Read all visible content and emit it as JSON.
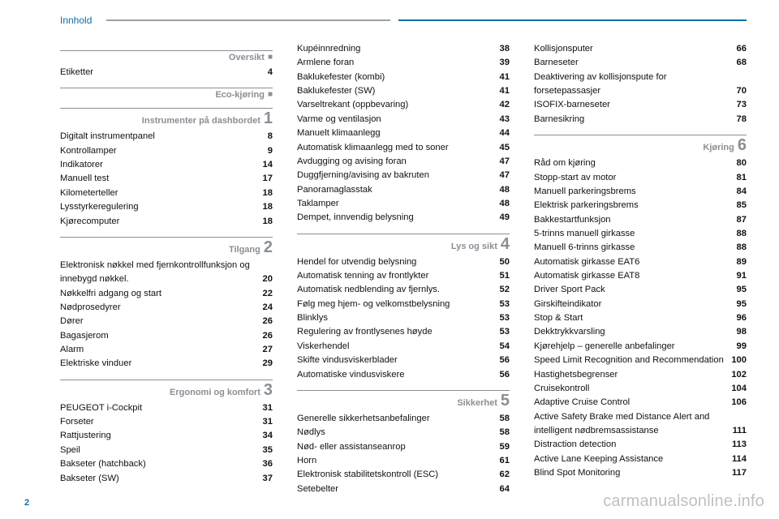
{
  "header": {
    "title": "Innhold"
  },
  "page_number": "2",
  "watermark": "carmanualsonline.info",
  "columns": [
    {
      "sections": [
        {
          "title": "Oversikt",
          "marker": "square",
          "entries": [
            {
              "label": "Etiketter",
              "page": "4"
            }
          ]
        },
        {
          "title": "Eco-kjøring",
          "marker": "square",
          "entries": []
        },
        {
          "title": "Instrumenter på dashbordet",
          "marker": "1",
          "entries": [
            {
              "label": "Digitalt instrumentpanel",
              "page": "8"
            },
            {
              "label": "Kontrollamper",
              "page": "9"
            },
            {
              "label": "Indikatorer",
              "page": "14"
            },
            {
              "label": "Manuell test",
              "page": "17"
            },
            {
              "label": "Kilometerteller",
              "page": "18"
            },
            {
              "label": "Lysstyrkeregulering",
              "page": "18"
            },
            {
              "label": "Kjørecomputer",
              "page": "18"
            }
          ]
        },
        {
          "title": "Tilgang",
          "marker": "2",
          "entries": [
            {
              "label": "Elektronisk nøkkel med fjernkontrollfunksjon og innebygd nøkkel.",
              "page": "20"
            },
            {
              "label": "Nøkkelfri adgang og start",
              "page": "22"
            },
            {
              "label": "Nødprosedyrer",
              "page": "24"
            },
            {
              "label": "Dører",
              "page": "26"
            },
            {
              "label": "Bagasjerom",
              "page": "26"
            },
            {
              "label": "Alarm",
              "page": "27"
            },
            {
              "label": "Elektriske vinduer",
              "page": "29"
            }
          ]
        },
        {
          "title": "Ergonomi og komfort",
          "marker": "3",
          "entries": [
            {
              "label": "PEUGEOT i-Cockpit",
              "page": "31"
            },
            {
              "label": "Forseter",
              "page": "31"
            },
            {
              "label": "Rattjustering",
              "page": "34"
            },
            {
              "label": "Speil",
              "page": "35"
            },
            {
              "label": "Bakseter (hatchback)",
              "page": "36"
            },
            {
              "label": "Bakseter (SW)",
              "page": "37"
            }
          ]
        }
      ]
    },
    {
      "sections": [
        {
          "title": null,
          "marker": null,
          "entries": [
            {
              "label": "Kupéinnredning",
              "page": "38"
            },
            {
              "label": "Armlene foran",
              "page": "39"
            },
            {
              "label": "Baklukefester (kombi)",
              "page": "41"
            },
            {
              "label": "Baklukefester (SW)",
              "page": "41"
            },
            {
              "label": "Varseltrekant (oppbevaring)",
              "page": "42"
            },
            {
              "label": "Varme og ventilasjon",
              "page": "43"
            },
            {
              "label": "Manuelt klimaanlegg",
              "page": "44"
            },
            {
              "label": "Automatisk klimaanlegg med to soner",
              "page": "45"
            },
            {
              "label": "Avdugging og avising foran",
              "page": "47"
            },
            {
              "label": "Duggfjerning/avising av bakruten",
              "page": "47"
            },
            {
              "label": "Panoramaglasstak",
              "page": "48"
            },
            {
              "label": "Taklamper",
              "page": "48"
            },
            {
              "label": "Dempet, innvendig belysning",
              "page": "49"
            }
          ]
        },
        {
          "title": "Lys og sikt",
          "marker": "4",
          "entries": [
            {
              "label": "Hendel for utvendig belysning",
              "page": "50"
            },
            {
              "label": "Automatisk tenning av frontlykter",
              "page": "51"
            },
            {
              "label": "Automatisk nedblending av fjernlys.",
              "page": "52"
            },
            {
              "label": "Følg meg hjem- og velkomstbelysning",
              "page": "53"
            },
            {
              "label": "Blinklys",
              "page": "53"
            },
            {
              "label": "Regulering av frontlysenes høyde",
              "page": "53"
            },
            {
              "label": "Viskerhendel",
              "page": "54"
            },
            {
              "label": "Skifte vindusviskerblader",
              "page": "56"
            },
            {
              "label": "Automatiske vindusviskere",
              "page": "56"
            }
          ]
        },
        {
          "title": "Sikkerhet",
          "marker": "5",
          "entries": [
            {
              "label": "Generelle sikkerhetsanbefalinger",
              "page": "58"
            },
            {
              "label": "Nødlys",
              "page": "58"
            },
            {
              "label": "Nød- eller assistanseanrop",
              "page": "59"
            },
            {
              "label": "Horn",
              "page": "61"
            },
            {
              "label": "Elektronisk stabilitetskontroll (ESC)",
              "page": "62"
            },
            {
              "label": "Setebelter",
              "page": "64"
            }
          ]
        }
      ]
    },
    {
      "sections": [
        {
          "title": null,
          "marker": null,
          "entries": [
            {
              "label": "Kollisjonsputer",
              "page": "66"
            },
            {
              "label": "Barneseter",
              "page": "68"
            },
            {
              "label": "Deaktivering av kollisjonspute for forsetepassasjer",
              "page": "70"
            },
            {
              "label": "ISOFIX-barneseter",
              "page": "73"
            },
            {
              "label": "Barnesikring",
              "page": "78"
            }
          ]
        },
        {
          "title": "Kjøring",
          "marker": "6",
          "entries": [
            {
              "label": "Råd om kjøring",
              "page": "80"
            },
            {
              "label": "Stopp-start av motor",
              "page": "81"
            },
            {
              "label": "Manuell parkeringsbrems",
              "page": "84"
            },
            {
              "label": "Elektrisk parkeringsbrems",
              "page": "85"
            },
            {
              "label": "Bakkestartfunksjon",
              "page": "87"
            },
            {
              "label": "5-trinns manuell girkasse",
              "page": "88"
            },
            {
              "label": "Manuell 6-trinns girkasse",
              "page": "88"
            },
            {
              "label": "Automatisk girkasse EAT6",
              "page": "89"
            },
            {
              "label": "Automatisk girkasse EAT8",
              "page": "91"
            },
            {
              "label": "Driver Sport Pack",
              "page": "95"
            },
            {
              "label": "Girskifteindikator",
              "page": "95"
            },
            {
              "label": "Stop & Start",
              "page": "96"
            },
            {
              "label": "Dekktrykkvarsling",
              "page": "98"
            },
            {
              "label": "Kjørehjelp – generelle anbefalinger",
              "page": "99"
            },
            {
              "label": "Speed Limit Recognition and Recommendation",
              "page": "100"
            },
            {
              "label": "Hastighetsbegrenser",
              "page": "102"
            },
            {
              "label": "Cruisekontroll",
              "page": "104"
            },
            {
              "label": "Adaptive Cruise Control",
              "page": "106"
            },
            {
              "label": " Active Safety Brake  med Distance Alert and intelligent nødbremsassistanse",
              "page": "111"
            },
            {
              "label": "Distraction detection",
              "page": "113"
            },
            {
              "label": "Active Lane Keeping Assistance",
              "page": "114"
            },
            {
              "label": "Blind Spot Monitoring",
              "page": "117"
            }
          ]
        }
      ]
    }
  ],
  "style": {
    "accent": "#0a6ea8",
    "grey": "#8a8f94",
    "text": "#111111",
    "font_size_entry": 11.2,
    "font_size_section_label": 11,
    "font_size_section_num": 20,
    "font_size_header": 12,
    "background": "#ffffff"
  }
}
